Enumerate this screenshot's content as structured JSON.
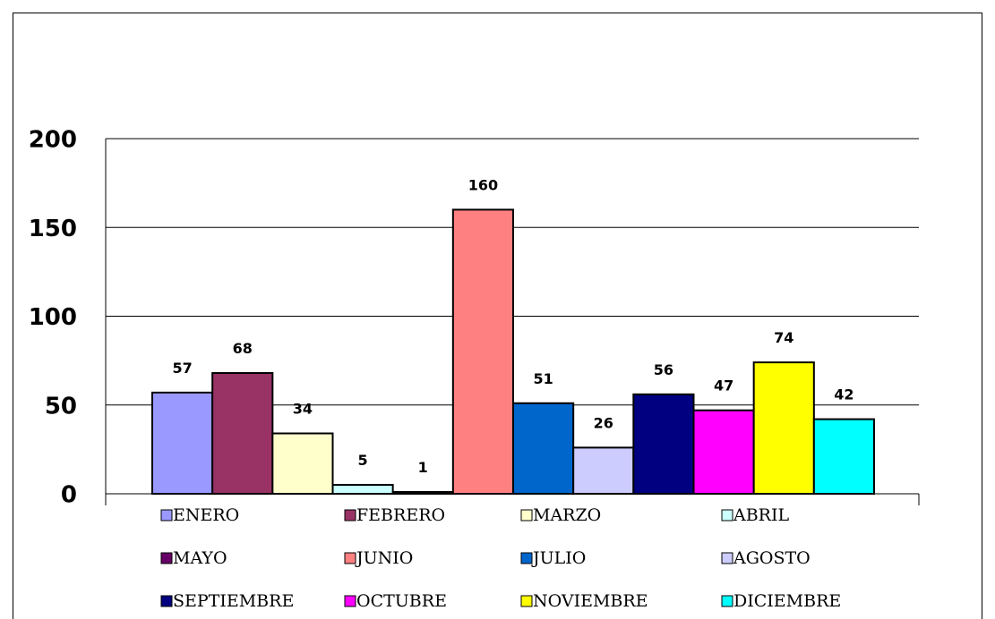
{
  "chart_data": {
    "type": "bar",
    "series": [
      {
        "name": "ENERO",
        "color": "#9999ff",
        "values": [
          57
        ]
      },
      {
        "name": "FEBRERO",
        "color": "#993366",
        "values": [
          68
        ]
      },
      {
        "name": "MARZO",
        "color": "#ffffcc",
        "values": [
          34
        ]
      },
      {
        "name": "ABRIL",
        "color": "#ccffff",
        "values": [
          5
        ]
      },
      {
        "name": "MAYO",
        "color": "#660066",
        "values": [
          1
        ]
      },
      {
        "name": "JUNIO",
        "color": "#ff8080",
        "values": [
          160
        ]
      },
      {
        "name": "JULIO",
        "color": "#0066cc",
        "values": [
          51
        ]
      },
      {
        "name": "AGOSTO",
        "color": "#ccccff",
        "values": [
          26
        ]
      },
      {
        "name": "SEPTIEMBRE",
        "color": "#000080",
        "values": [
          56
        ]
      },
      {
        "name": "OCTUBRE",
        "color": "#ff00ff",
        "values": [
          47
        ]
      },
      {
        "name": "NOVIEMBRE",
        "color": "#ffff00",
        "values": [
          74
        ]
      },
      {
        "name": "DICIEMBRE",
        "color": "#00ffff",
        "values": [
          42
        ]
      }
    ],
    "ylim": [
      0,
      200
    ],
    "yticks": [
      0,
      50,
      100,
      150,
      200
    ],
    "grid": true,
    "legend": "bottom"
  }
}
